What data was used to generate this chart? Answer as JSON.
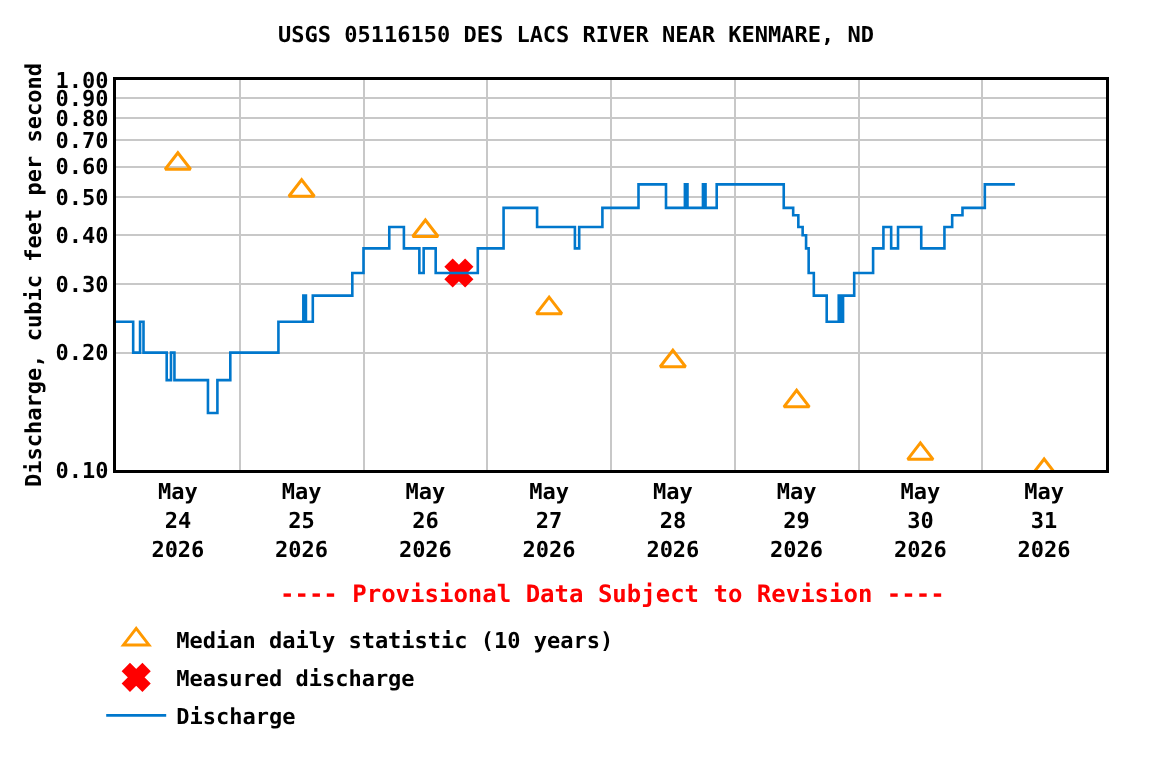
{
  "chart_data": {
    "type": "step",
    "title": "USGS 05116150 DES LACS RIVER NEAR KENMARE, ND",
    "ylabel": "Discharge, cubic feet per second",
    "annotations": [
      "---- Provisional Data Subject to Revision ----"
    ],
    "log": "y",
    "grid": true,
    "legend": "bottom",
    "xlim": [
      "2026-05-24",
      "2026-06-01"
    ],
    "xticks": [
      {
        "value": "2026-05-24T12:00",
        "label": "May\n24\n2026"
      },
      {
        "value": "2026-05-25T12:00",
        "label": "May\n25\n2026"
      },
      {
        "value": "2026-05-26T12:00",
        "label": "May\n26\n2026"
      },
      {
        "value": "2026-05-27T12:00",
        "label": "May\n27\n2026"
      },
      {
        "value": "2026-05-28T12:00",
        "label": "May\n28\n2026"
      },
      {
        "value": "2026-05-29T12:00",
        "label": "May\n29\n2026"
      },
      {
        "value": "2026-05-30T12:00",
        "label": "May\n30\n2026"
      },
      {
        "value": "2026-05-31T12:00",
        "label": "May\n31\n2026"
      },
      {
        "value": "2026-05-25",
        "label": null
      },
      {
        "value": "2026-05-26",
        "label": null
      },
      {
        "value": "2026-05-27",
        "label": null
      },
      {
        "value": "2026-05-28",
        "label": null
      },
      {
        "value": "2026-05-29",
        "label": null
      },
      {
        "value": "2026-05-30",
        "label": null
      },
      {
        "value": "2026-05-31",
        "label": null
      }
    ],
    "ylim": [
      0.1,
      1.0
    ],
    "yticks": [
      {
        "value": 0.1,
        "label": "0.10"
      },
      {
        "value": 0.2,
        "label": "0.20"
      },
      {
        "value": 0.3,
        "label": "0.30"
      },
      {
        "value": 0.4,
        "label": "0.40"
      },
      {
        "value": 0.5,
        "label": "0.50"
      },
      {
        "value": 0.6,
        "label": "0.60"
      },
      {
        "value": 0.7,
        "label": "0.70"
      },
      {
        "value": 0.8,
        "label": "0.80"
      },
      {
        "value": 0.9,
        "label": "0.90"
      },
      {
        "value": 1.0,
        "label": "1.00"
      }
    ],
    "series": [
      {
        "name": "Median daily statistic (10 years)",
        "type": "scatter",
        "marker": "triangle",
        "color": "#ff9900",
        "x": [
          "2026-05-24T12:00",
          "2026-05-25T12:00",
          "2026-05-26T12:00",
          "2026-05-27T12:00",
          "2026-05-28T12:00",
          "2026-05-29T12:00",
          "2026-05-30T12:00",
          "2026-05-31T12:00"
        ],
        "values": [
          0.61,
          0.52,
          0.41,
          0.26,
          0.19,
          0.15,
          0.11,
          0.1
        ]
      },
      {
        "name": "Measured discharge",
        "type": "scatter",
        "marker": "cross",
        "color": "#ff0000",
        "x": [
          "2026-05-26T18:30"
        ],
        "values": [
          0.32
        ]
      },
      {
        "name": "Discharge",
        "color": "#0077cc",
        "x": [
          "2026-05-24T00:00",
          "2026-05-24T03:20",
          "2026-05-24T04:40",
          "2026-05-24T05:20",
          "2026-05-24T09:50",
          "2026-05-24T10:40",
          "2026-05-24T11:20",
          "2026-05-24T17:50",
          "2026-05-24T19:40",
          "2026-05-24T22:10",
          "2026-05-25T07:30",
          "2026-05-25T12:20",
          "2026-05-25T12:50",
          "2026-05-25T14:10",
          "2026-05-25T21:50",
          "2026-05-26T00:00",
          "2026-05-26T05:00",
          "2026-05-26T07:50",
          "2026-05-26T10:50",
          "2026-05-26T11:40",
          "2026-05-26T14:00",
          "2026-05-26T22:10",
          "2026-05-27T03:10",
          "2026-05-27T09:40",
          "2026-05-27T17:00",
          "2026-05-27T17:50",
          "2026-05-27T22:20",
          "2026-05-28T05:20",
          "2026-05-28T10:40",
          "2026-05-28T14:20",
          "2026-05-28T14:50",
          "2026-05-28T17:50",
          "2026-05-28T18:20",
          "2026-05-28T20:30",
          "2026-05-29T09:30",
          "2026-05-29T11:20",
          "2026-05-29T12:20",
          "2026-05-29T13:10",
          "2026-05-29T13:50",
          "2026-05-29T14:20",
          "2026-05-29T15:20",
          "2026-05-29T17:50",
          "2026-05-29T20:10",
          "2026-05-29T20:30",
          "2026-05-29T21:00",
          "2026-05-29T23:10",
          "2026-05-30T02:50",
          "2026-05-30T04:50",
          "2026-05-30T06:20",
          "2026-05-30T07:40",
          "2026-05-30T12:10",
          "2026-05-30T16:40",
          "2026-05-30T18:10",
          "2026-05-30T20:10",
          "2026-05-31T00:30",
          "2026-05-31T06:20"
        ],
        "values": [
          0.24,
          0.2,
          0.24,
          0.2,
          0.17,
          0.2,
          0.17,
          0.14,
          0.17,
          0.2,
          0.24,
          0.28,
          0.24,
          0.28,
          0.32,
          0.37,
          0.42,
          0.37,
          0.32,
          0.37,
          0.32,
          0.37,
          0.47,
          0.42,
          0.37,
          0.42,
          0.47,
          0.54,
          0.47,
          0.54,
          0.47,
          0.54,
          0.47,
          0.54,
          0.47,
          0.45,
          0.42,
          0.4,
          0.37,
          0.32,
          0.28,
          0.24,
          0.28,
          0.24,
          0.28,
          0.32,
          0.37,
          0.42,
          0.37,
          0.42,
          0.37,
          0.42,
          0.45,
          0.47,
          0.54,
          0.54
        ]
      }
    ]
  }
}
